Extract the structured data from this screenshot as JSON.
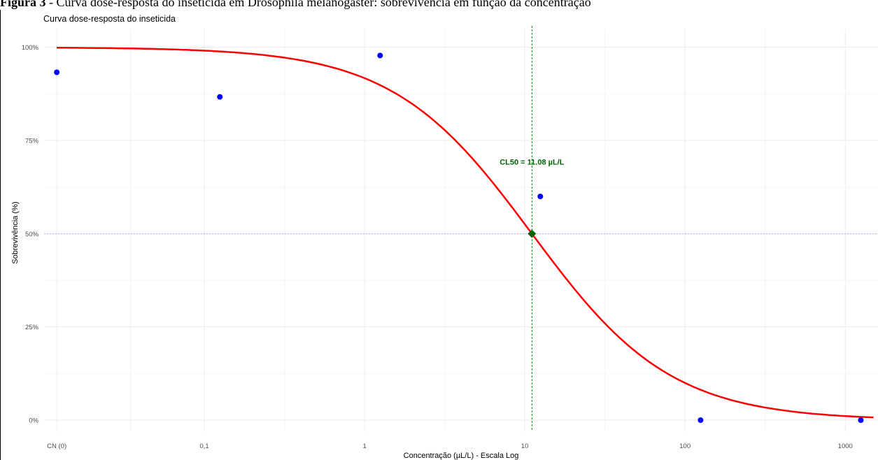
{
  "figure_caption": {
    "label": "Figura 3",
    "text": " - Curva dose-resposta do inseticida em Drosophila melanogaster: sobrevivência em função da concentração"
  },
  "colors": {
    "curve": "#ff0000",
    "points": "#0000ff",
    "cl50_marker": "#006400",
    "cl50_line": "#008000",
    "reference_line": "#c8a0d8",
    "grid": "#ebebeb"
  },
  "chart_data": {
    "type": "line",
    "title": "Curva dose-resposta do inseticida",
    "xlabel": "Concentração (µL/L) - Escala Log",
    "ylabel": "Sobrevivência (%)",
    "x_scale": "log10",
    "xlim": [
      0.01,
      1600
    ],
    "ylim": [
      -3,
      105
    ],
    "x_ticks": [
      {
        "value": 0.012,
        "label": "CN (0)"
      },
      {
        "value": 0.1,
        "label": "0,1"
      },
      {
        "value": 1,
        "label": "1"
      },
      {
        "value": 10,
        "label": "10"
      },
      {
        "value": 100,
        "label": "100"
      },
      {
        "value": 1000,
        "label": "1000"
      }
    ],
    "y_ticks": [
      {
        "value": 0,
        "label": "0%"
      },
      {
        "value": 25,
        "label": "25%"
      },
      {
        "value": 50,
        "label": "50%"
      },
      {
        "value": 75,
        "label": "75%"
      },
      {
        "value": 100,
        "label": "100%"
      }
    ],
    "grid": true,
    "series": [
      {
        "kind": "points",
        "x": [
          0.012,
          0.125,
          1.25,
          12.5,
          125,
          1250
        ],
        "y": [
          93.3,
          86.7,
          97.8,
          60.0,
          0.0,
          0.0
        ]
      },
      {
        "kind": "fitted_curve",
        "model": "log-logistic",
        "upper": 100,
        "lower": 0,
        "ec50": 11.08,
        "slope": 1.0,
        "x_range": [
          0.012,
          1500
        ]
      }
    ],
    "cl50": {
      "x": 11.08,
      "y": 50,
      "label": "CL50 = 11.08 µL/L"
    },
    "reference_y": 50
  }
}
